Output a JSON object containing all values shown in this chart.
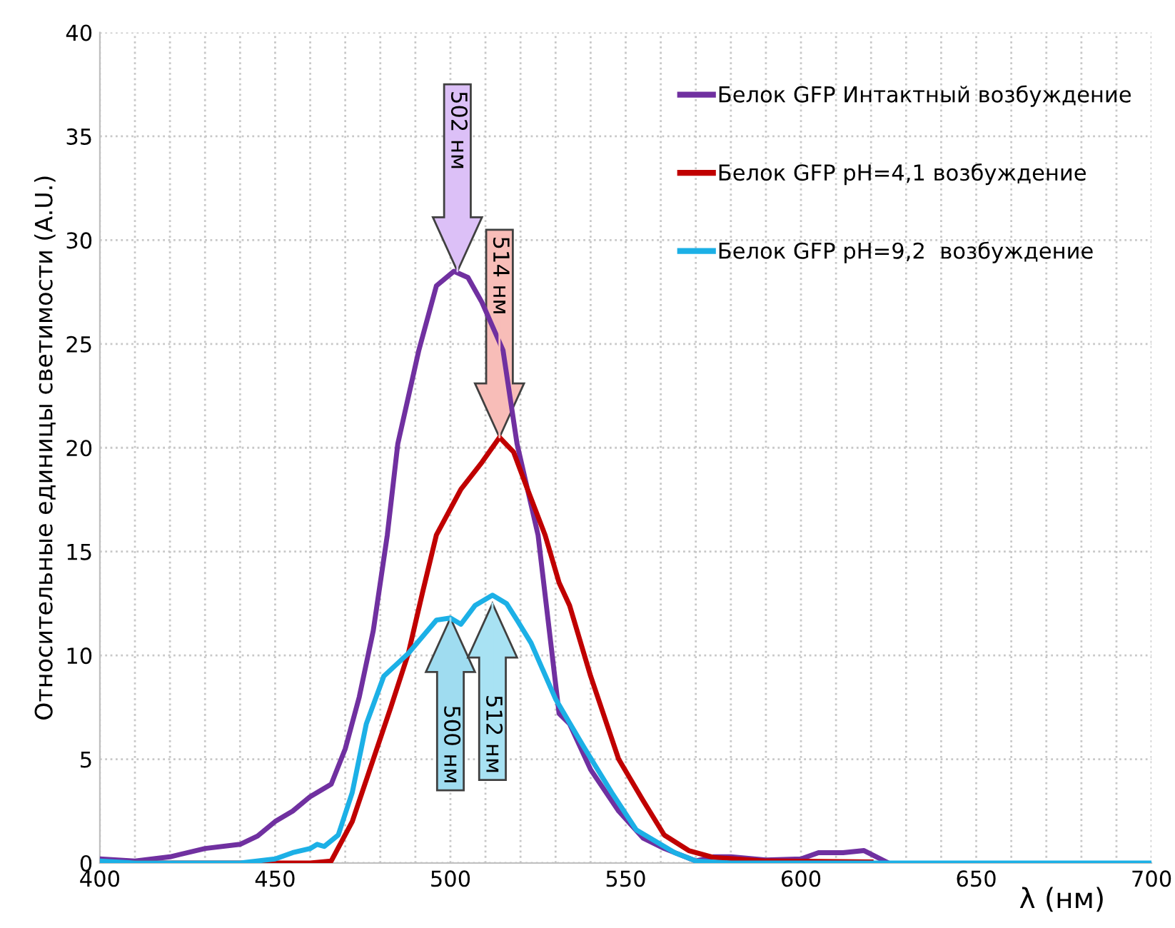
{
  "chart_data": {
    "type": "line",
    "xlabel": "λ (нм)",
    "ylabel": "Относительные единицы светимости (A.U.)",
    "xlim": [
      400,
      700
    ],
    "ylim": [
      0,
      40
    ],
    "xticks": [
      400,
      {
        "value": 410,
        "label": null
      },
      {
        "value": 420,
        "label": null
      },
      {
        "value": 430,
        "label": null
      },
      {
        "value": 440,
        "label": null
      },
      450,
      {
        "value": 460,
        "label": null
      },
      {
        "value": 470,
        "label": null
      },
      {
        "value": 480,
        "label": null
      },
      {
        "value": 490,
        "label": null
      },
      500,
      {
        "value": 510,
        "label": null
      },
      {
        "value": 520,
        "label": null
      },
      {
        "value": 530,
        "label": null
      },
      {
        "value": 540,
        "label": null
      },
      550,
      {
        "value": 560,
        "label": null
      },
      {
        "value": 570,
        "label": null
      },
      {
        "value": 580,
        "label": null
      },
      {
        "value": 590,
        "label": null
      },
      600,
      {
        "value": 610,
        "label": null
      },
      {
        "value": 620,
        "label": null
      },
      {
        "value": 630,
        "label": null
      },
      {
        "value": 640,
        "label": null
      },
      650,
      {
        "value": 660,
        "label": null
      },
      {
        "value": 670,
        "label": null
      },
      {
        "value": 680,
        "label": null
      },
      {
        "value": 690,
        "label": null
      },
      700
    ],
    "yticks": [
      0,
      5,
      10,
      15,
      20,
      25,
      30,
      35,
      40
    ],
    "grid": true,
    "legend": "top right",
    "marker": "none",
    "line_style": "solid",
    "series": [
      {
        "name": "Белок GFP Интактный возбуждение",
        "color": "#7030a0",
        "x": [
          400,
          410,
          420,
          430,
          440,
          445,
          450,
          455,
          460,
          466,
          470,
          474,
          478,
          482,
          485,
          491,
          496,
          501,
          505,
          509,
          515,
          519,
          525,
          531,
          534,
          540,
          548,
          555,
          561,
          570,
          575,
          580,
          590,
          600,
          605,
          612,
          618,
          625
        ],
        "values": [
          0.2,
          0.1,
          0.3,
          0.7,
          0.9,
          1.3,
          2.0,
          2.5,
          3.2,
          3.8,
          5.5,
          8.0,
          11.2,
          15.8,
          20.2,
          24.7,
          27.8,
          28.5,
          28.2,
          27.0,
          24.7,
          20.2,
          15.8,
          7.2,
          6.7,
          4.5,
          2.5,
          1.2,
          0.7,
          0.1,
          0.3,
          0.3,
          0.15,
          0.2,
          0.5,
          0.5,
          0.6,
          0
        ]
      },
      {
        "name": "Белок GFP pH=4,1 возбуждение",
        "color": "#c00000",
        "x": [
          400,
          420,
          440,
          460,
          466,
          472,
          477,
          483,
          488,
          492,
          496,
          503,
          509,
          514,
          518,
          522,
          527,
          531,
          534,
          540,
          548,
          555,
          561,
          568,
          575,
          590,
          620
        ],
        "values": [
          0,
          0,
          0,
          0,
          0.1,
          2.0,
          4.5,
          7.5,
          10.1,
          13.0,
          15.8,
          18.0,
          19.3,
          20.5,
          19.8,
          18.0,
          15.8,
          13.5,
          12.4,
          9.0,
          5.0,
          3.0,
          1.35,
          0.6,
          0.27,
          0.1,
          0.05
        ]
      },
      {
        "name": "Белок GFP pH=9,2  возбуждение",
        "color": "#1cb0e6",
        "x": [
          400,
          410,
          440,
          450,
          455,
          460,
          462,
          464,
          468,
          472,
          476,
          481,
          488,
          496,
          500,
          503,
          507,
          512,
          516,
          519,
          523,
          530,
          538,
          546,
          553,
          564,
          570,
          580,
          700
        ],
        "values": [
          0.1,
          0,
          0,
          0.2,
          0.5,
          0.7,
          0.9,
          0.8,
          1.35,
          3.4,
          6.7,
          9.0,
          10.1,
          11.7,
          11.8,
          11.5,
          12.4,
          12.9,
          12.5,
          11.7,
          10.6,
          7.9,
          5.6,
          3.4,
          1.6,
          0.5,
          0.1,
          0,
          0
        ]
      }
    ],
    "annotations": [
      {
        "text": "502 нм",
        "x": 502,
        "y": 28.5
      },
      {
        "text": "514 нм",
        "x": 514,
        "y": 20.5
      },
      {
        "text": "500 нм",
        "x": 500,
        "y": 11.8
      },
      {
        "text": "512 нм",
        "x": 512,
        "y": 12.5
      }
    ]
  }
}
